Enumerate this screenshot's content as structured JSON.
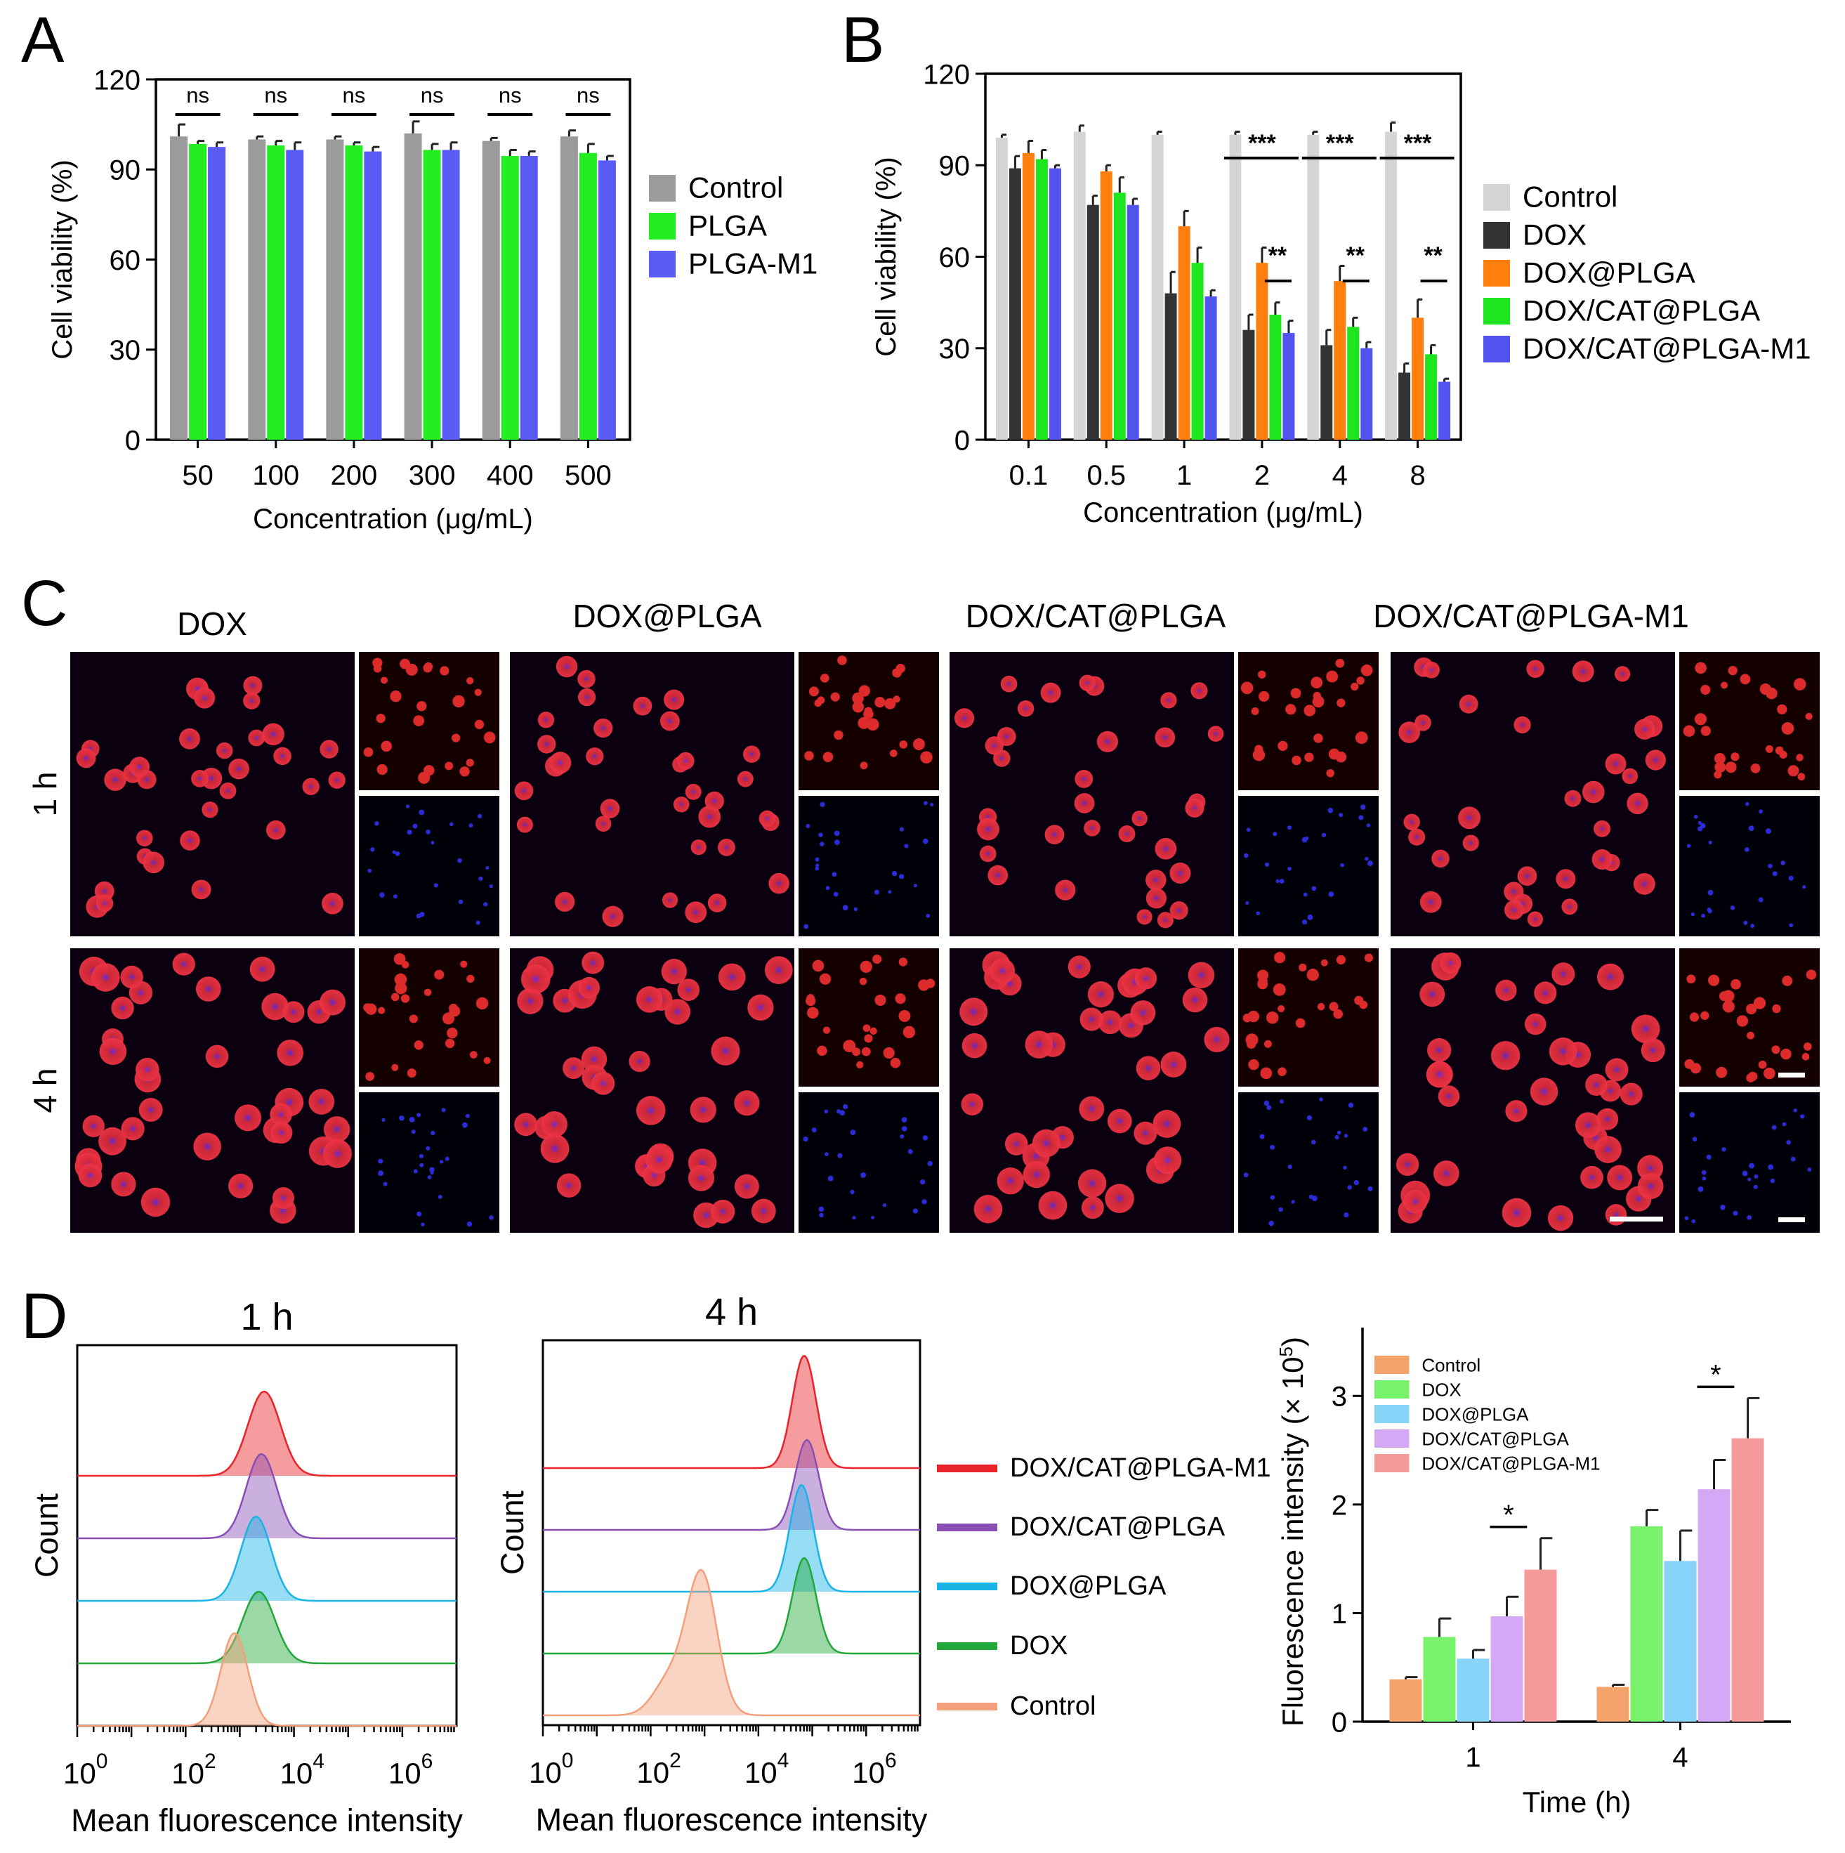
{
  "panels": {
    "A": "A",
    "B": "B",
    "C": "C",
    "D": "D"
  },
  "colors": {
    "grey": "#9b9b9b",
    "green": "#22ee22",
    "blue": "#5b5bf5",
    "lightgrey": "#d5d5d5",
    "dark": "#333333",
    "orange": "#ff7f0e",
    "brightgreen": "#1ee61e",
    "violet": "#5353ef",
    "d_control": "#f4a46a",
    "d_dox": "#78f26a",
    "d_doxplga": "#88d4f8",
    "d_doxcat": "#d4a8f4",
    "d_doxcatm1": "#f59a9a",
    "h_m1": "#e8232a",
    "h_cat": "#8a4fb5",
    "h_plga": "#19b3e6",
    "h_dox": "#22a83a",
    "h_ctrl": "#f2a07b"
  },
  "chart_data": [
    {
      "id": "A",
      "type": "bar",
      "title": "",
      "xlabel": "Concentration (μg/mL)",
      "ylabel": "Cell viability (%)",
      "ylim": [
        0,
        120
      ],
      "yticks": [
        "0",
        "30",
        "60",
        "90",
        "120"
      ],
      "categories": [
        "50",
        "100",
        "200",
        "300",
        "400",
        "500"
      ],
      "series": [
        {
          "name": "Control",
          "color": "#9b9b9b",
          "values": [
            101,
            100,
            100,
            102,
            99.5,
            101
          ],
          "errors": [
            4,
            1,
            1,
            4,
            1,
            2
          ]
        },
        {
          "name": "PLGA",
          "color": "#22ee22",
          "values": [
            98.5,
            98,
            98,
            96.5,
            94.5,
            95.5
          ],
          "errors": [
            1,
            1.5,
            1,
            2,
            2,
            3
          ]
        },
        {
          "name": "PLGA-M1",
          "color": "#5b5bf5",
          "values": [
            97.5,
            96.5,
            96,
            96.5,
            94.5,
            93
          ],
          "errors": [
            1.5,
            2.5,
            1.5,
            2.5,
            1.5,
            1.5
          ]
        }
      ],
      "significance": [
        "ns",
        "ns",
        "ns",
        "ns",
        "ns",
        "ns"
      ]
    },
    {
      "id": "B",
      "type": "bar",
      "title": "",
      "xlabel": "Concentration (μg/mL)",
      "ylabel": "Cell viability (%)",
      "ylim": [
        0,
        120
      ],
      "yticks": [
        "0",
        "30",
        "60",
        "90",
        "120"
      ],
      "categories": [
        "0.1",
        "0.5",
        "1",
        "2",
        "4",
        "8"
      ],
      "series": [
        {
          "name": "Control",
          "color": "#d5d5d5",
          "values": [
            99,
            101,
            100,
            100,
            100,
            101
          ],
          "errors": [
            1,
            2,
            1,
            1,
            1,
            3
          ]
        },
        {
          "name": "DOX",
          "color": "#333333",
          "values": [
            89,
            77,
            48,
            36,
            31,
            22
          ],
          "errors": [
            4,
            3,
            7,
            5,
            5,
            3
          ]
        },
        {
          "name": "DOX@PLGA",
          "color": "#ff7f0e",
          "values": [
            94,
            88,
            70,
            58,
            52,
            40
          ],
          "errors": [
            4,
            2,
            5,
            5,
            5,
            6
          ]
        },
        {
          "name": "DOX/CAT@PLGA",
          "color": "#1ee61e",
          "values": [
            92,
            81,
            58,
            41,
            37,
            28
          ],
          "errors": [
            3,
            5,
            5,
            4,
            3,
            3
          ]
        },
        {
          "name": "DOX/CAT@PLGA-M1",
          "color": "#5353ef",
          "values": [
            89,
            77,
            47,
            35,
            30,
            19
          ],
          "errors": [
            1,
            2,
            2,
            4,
            2,
            1
          ]
        }
      ],
      "significance": [
        {
          "group": "2",
          "upper": "***",
          "lower": "**"
        },
        {
          "group": "4",
          "upper": "***",
          "lower": "**"
        },
        {
          "group": "8",
          "upper": "***",
          "lower": "**"
        }
      ]
    },
    {
      "id": "C",
      "type": "table",
      "title": "",
      "columns": [
        "DOX",
        "DOX@PLGA",
        "DOX/CAT@PLGA",
        "DOX/CAT@PLGA-M1"
      ],
      "rows": [
        "1 h",
        "4 h"
      ]
    },
    {
      "id": "D1",
      "type": "area",
      "title": "1 h",
      "xlabel": "Mean fluorescence intensity",
      "ylabel": "Count",
      "x_scale": "log10",
      "xlim": [
        0,
        7
      ],
      "xticks": [
        "0",
        "2",
        "4",
        "6"
      ],
      "series": [
        {
          "name": "DOX/CAT@PLGA-M1",
          "color": "#e8232a",
          "peak_log10": 3.45,
          "width": 0.3,
          "height": 1.0
        },
        {
          "name": "DOX/CAT@PLGA",
          "color": "#8a4fb5",
          "peak_log10": 3.4,
          "width": 0.28,
          "height": 1.0
        },
        {
          "name": "DOX@PLGA",
          "color": "#19b3e6",
          "peak_log10": 3.3,
          "width": 0.28,
          "height": 1.0
        },
        {
          "name": "DOX",
          "color": "#22a83a",
          "peak_log10": 3.35,
          "width": 0.3,
          "height": 0.85
        },
        {
          "name": "Control",
          "color": "#f2a07b",
          "peak_log10": 2.9,
          "width": 0.25,
          "height": 1.1
        }
      ]
    },
    {
      "id": "D4",
      "type": "area",
      "title": "4 h",
      "xlabel": "Mean fluorescence intensity",
      "ylabel": "Count",
      "x_scale": "log10",
      "xlim": [
        0,
        7
      ],
      "xticks": [
        "0",
        "2",
        "4",
        "6"
      ],
      "series": [
        {
          "name": "DOX/CAT@PLGA-M1",
          "color": "#e8232a",
          "peak_log10": 4.85,
          "width": 0.22,
          "height": 1.0
        },
        {
          "name": "DOX/CAT@PLGA",
          "color": "#8a4fb5",
          "peak_log10": 4.9,
          "width": 0.22,
          "height": 0.8
        },
        {
          "name": "DOX@PLGA",
          "color": "#19b3e6",
          "peak_log10": 4.8,
          "width": 0.22,
          "height": 0.95
        },
        {
          "name": "DOX",
          "color": "#22a83a",
          "peak_log10": 4.85,
          "width": 0.22,
          "height": 0.85
        },
        {
          "name": "Control",
          "color": "#f2a07b",
          "peak_log10": 2.95,
          "width": 0.28,
          "height": 1.25
        }
      ]
    },
    {
      "id": "D_bar",
      "type": "bar",
      "title": "",
      "xlabel": "Time (h)",
      "ylabel": "Fluorescence intensity (× 10",
      "ylabel_sup": "5",
      "ylim": [
        0,
        3.5
      ],
      "yticks": [
        "0",
        "1",
        "2",
        "3"
      ],
      "categories": [
        "1",
        "4"
      ],
      "series": [
        {
          "name": "Control",
          "color": "#f4a46a",
          "values": [
            0.39,
            0.32
          ],
          "errors": [
            0.02,
            0.02
          ]
        },
        {
          "name": "DOX",
          "color": "#78f26a",
          "values": [
            0.78,
            1.8
          ],
          "errors": [
            0.17,
            0.15
          ]
        },
        {
          "name": "DOX@PLGA",
          "color": "#88d4f8",
          "values": [
            0.58,
            1.48
          ],
          "errors": [
            0.08,
            0.28
          ]
        },
        {
          "name": "DOX/CAT@PLGA",
          "color": "#d4a8f4",
          "values": [
            0.97,
            2.14
          ],
          "errors": [
            0.18,
            0.27
          ]
        },
        {
          "name": "DOX/CAT@PLGA-M1",
          "color": "#f59a9a",
          "values": [
            1.4,
            2.61
          ],
          "errors": [
            0.29,
            0.37
          ]
        }
      ],
      "significance": [
        "*",
        "*"
      ]
    }
  ]
}
